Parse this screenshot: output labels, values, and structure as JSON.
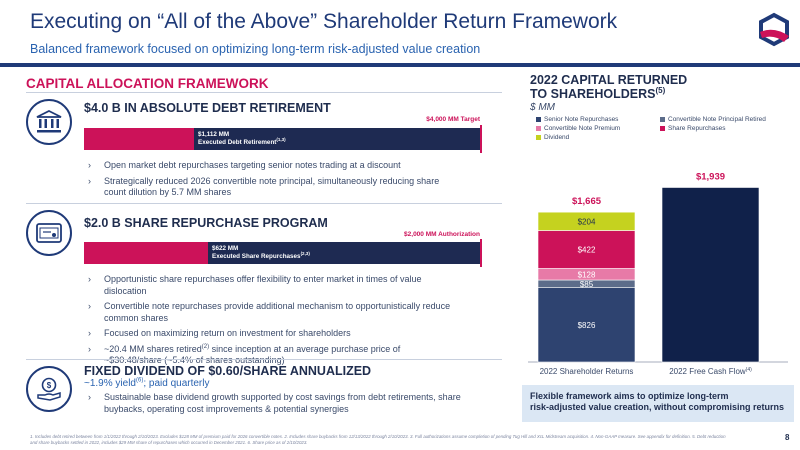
{
  "header": {
    "title": "Executing on “All of the Above” Shareholder Return Framework",
    "subtitle": "Balanced framework focused on optimizing long-term risk-adjusted value creation",
    "logo_icon": "q-logo-icon"
  },
  "left": {
    "section_title": "CAPITAL ALLOCATION FRAMEWORK",
    "debt": {
      "heading": "$4.0 B IN ABSOLUTE DEBT RETIREMENT",
      "icon": "bank-icon",
      "target_label": "$4,000 MM Target",
      "bar_value_label": "$1,112 MM",
      "bar_desc_label": "Executed Debt Retirement",
      "bar_desc_sup": "(1,3)",
      "progress_fraction": 0.278,
      "bullets": [
        "Open market debt repurchases targeting senior notes trading at a discount",
        "Strategically reduced 2026 convertible note principal, simultaneously reducing share count dilution by 5.7 MM shares"
      ]
    },
    "repurchase": {
      "heading": "$2.0 B SHARE REPURCHASE PROGRAM",
      "icon": "certificate-icon",
      "target_label": "$2,000 MM Authorization",
      "bar_value_label": "$622 MM",
      "bar_desc_label": "Executed Share Repurchases",
      "bar_desc_sup": "(2,3)",
      "progress_fraction": 0.311,
      "bullets": [
        "Opportunistic share repurchases offer flexibility to enter market in times of value dislocation",
        "Convertible note repurchases provide additional mechanism to opportunistically reduce common shares",
        "Focused on maximizing return on investment for shareholders"
      ],
      "bullet4_a": "~20.4 MM shares retired",
      "bullet4_sup": "(2)",
      "bullet4_b": " since inception at an average purchase price of ~$30.48/share (~5.4% of shares outstanding)"
    },
    "dividend": {
      "heading": "FIXED DIVIDEND OF $0.60/SHARE ANNUALIZED",
      "icon": "dividend-hand-icon",
      "yield_a": "~1.9% yield",
      "yield_sup": "(6)",
      "yield_b": "; paid quarterly",
      "bullets": [
        "Sustainable base dividend growth supported by cost savings from debt retirements, share buybacks, operating cost improvements & potential synergies"
      ]
    }
  },
  "chart_title_line1": "2022 CAPITAL RETURNED",
  "chart_title_line2": "TO SHAREHOLDERS",
  "chart_title_sup": "(5)",
  "chart_unit": "$ MM",
  "chart_data": {
    "type": "bar",
    "title": "2022 CAPITAL RETURNED TO SHAREHOLDERS",
    "ylabel": "$ MM",
    "categories": [
      "2022 Shareholder Returns",
      "2022 Free Cash Flow"
    ],
    "category_sup": [
      "",
      "(4)"
    ],
    "stacked": true,
    "ylim": [
      0,
      2000
    ],
    "series": [
      {
        "name": "Senior Note Repurchases",
        "color": "#2e4370",
        "values": [
          826,
          0
        ],
        "labels": [
          "$826",
          ""
        ]
      },
      {
        "name": "Convertible Note Principal Retired",
        "color": "#5c6c8a",
        "values": [
          85,
          0
        ],
        "labels": [
          "$85",
          ""
        ]
      },
      {
        "name": "Convertible Note Premium",
        "color": "#e77aa7",
        "values": [
          128,
          0
        ],
        "labels": [
          "$128",
          ""
        ]
      },
      {
        "name": "Share Repurchases",
        "color": "#cc1259",
        "values": [
          422,
          0
        ],
        "labels": [
          "$422",
          ""
        ]
      },
      {
        "name": "Dividend",
        "color": "#c5d21f",
        "values": [
          204,
          0
        ],
        "labels": [
          "$204",
          ""
        ]
      },
      {
        "name": "",
        "color": "#10214a",
        "values": [
          0,
          1939
        ],
        "labels": [
          "",
          ""
        ]
      }
    ],
    "totals": [
      1665,
      1939
    ],
    "total_labels": [
      "$1,665",
      "$1,939"
    ],
    "legend_position": "top"
  },
  "callout": {
    "line1": "Flexible framework aims to optimize long-term",
    "line2": "risk-adjusted value creation, without compromising returns"
  },
  "footnote": "1. Includes debt retired between from 1/1/2022 through 2/10/2023. Excludes $128 MM of premium paid for 2026 convertible notes. 2. Includes share buybacks from 12/13/2022 through 2/10/2023. 3. Full authorizations assume completion of pending Tug Hill and XcL Midstream acquisition. 4. Non-GAAP measure. See appendix for definition. 5. Debt reduction and share buybacks settled in 2022, includes $29 MM share of repurchases which occurred in December 2021. 6. Share price as of 2/10/2023.",
  "page_number": "8"
}
